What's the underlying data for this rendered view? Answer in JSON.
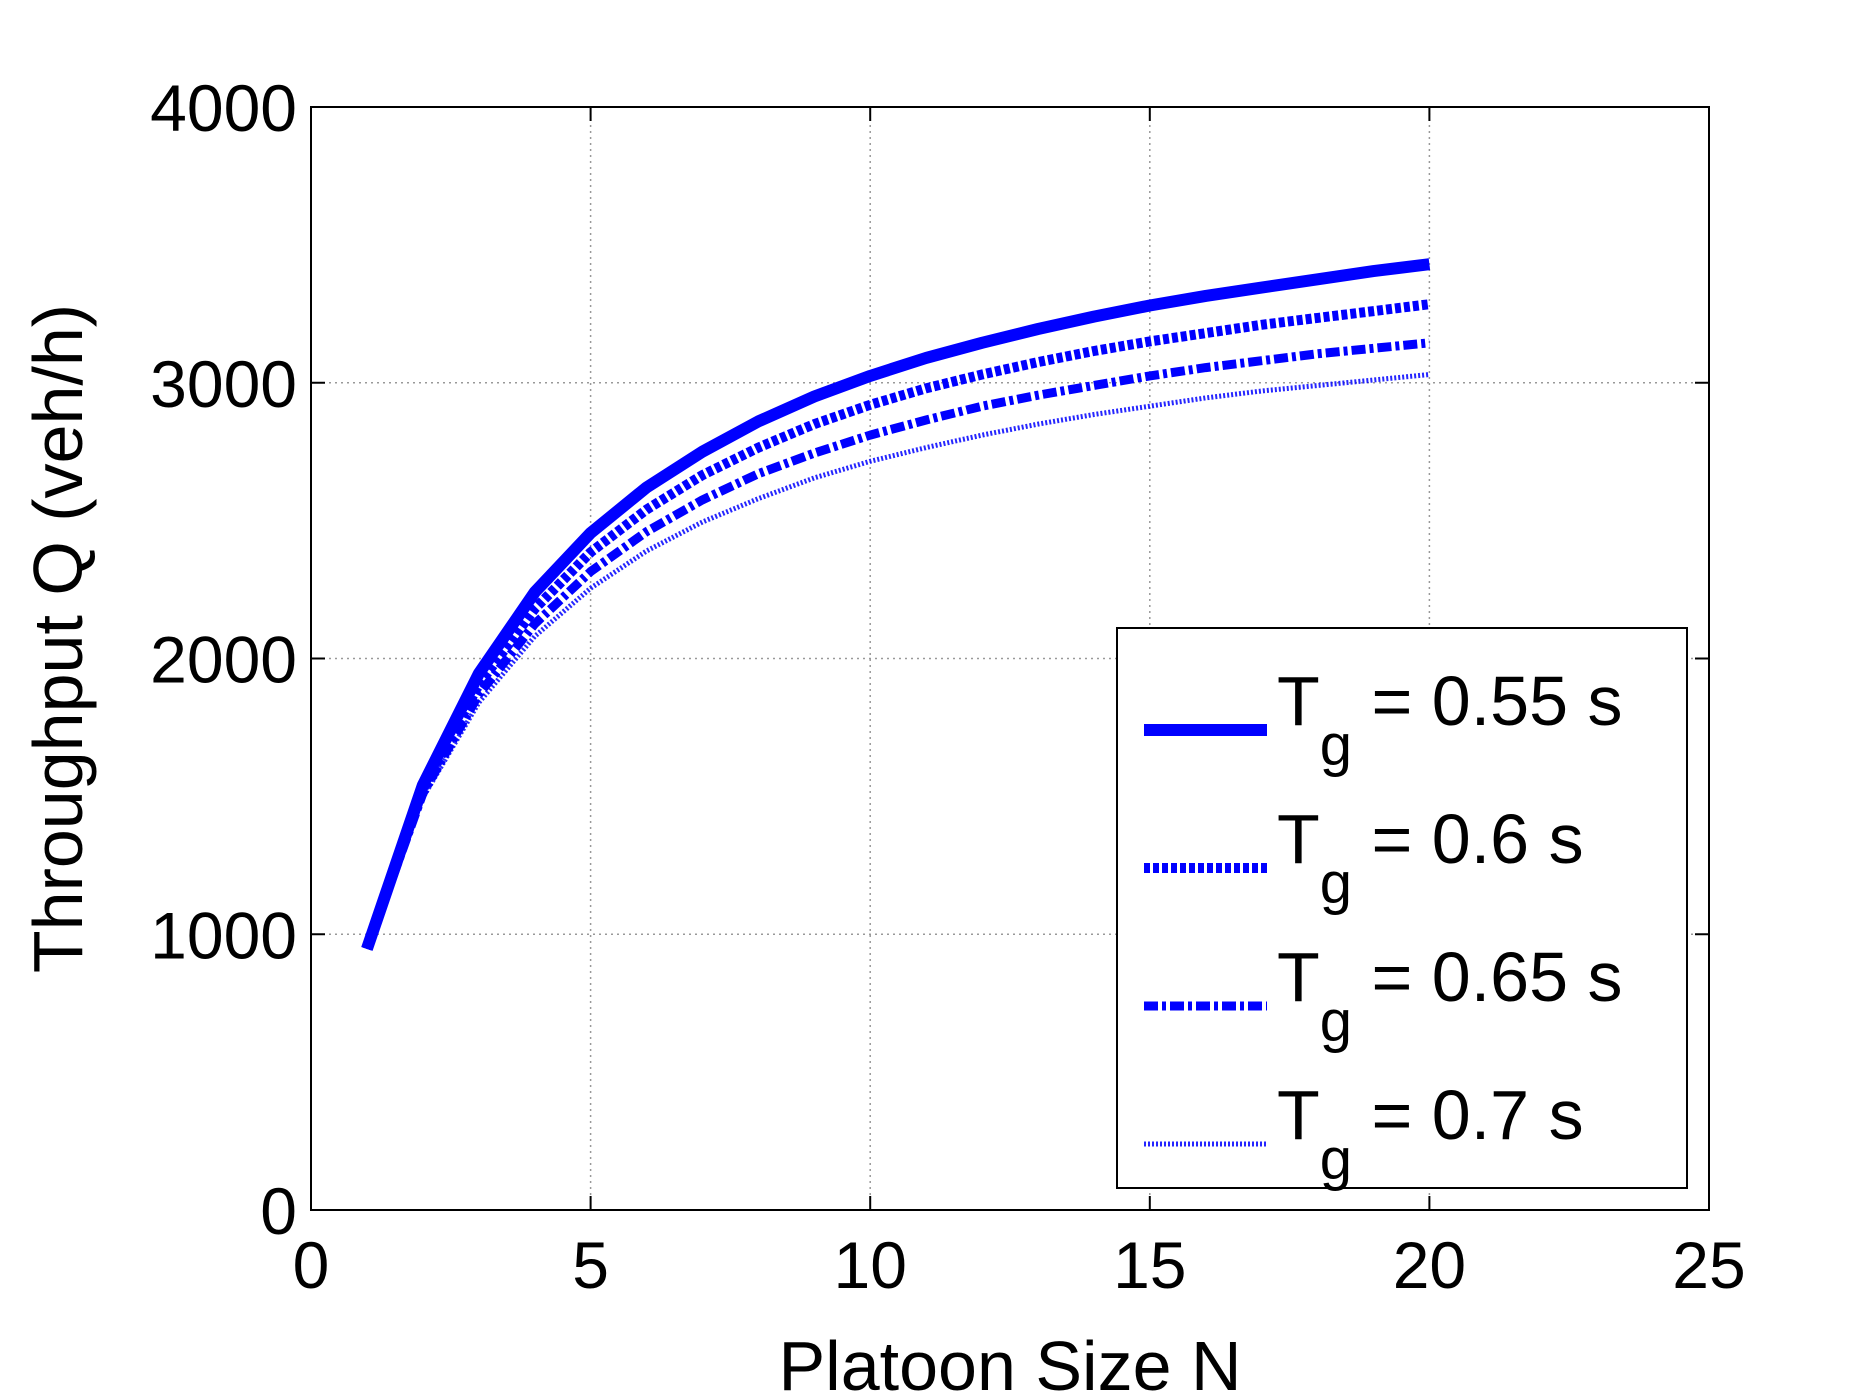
{
  "chart_data": {
    "type": "line",
    "title": "",
    "xlabel": "Platoon Size N",
    "ylabel": "Throughput Q (veh/h)",
    "xlim": [
      0,
      25
    ],
    "ylim": [
      0,
      4000
    ],
    "xticks": [
      "0",
      "5",
      "10",
      "15",
      "20",
      "25"
    ],
    "yticks": [
      "0",
      "1000",
      "2000",
      "3000",
      "4000"
    ],
    "grid": true,
    "legend_position": "bottom-right",
    "line_color": "#0000ff",
    "x": [
      1,
      2,
      3,
      4,
      5,
      6,
      7,
      8,
      9,
      10,
      11,
      12,
      13,
      14,
      15,
      16,
      17,
      18,
      19,
      20
    ],
    "series": [
      {
        "name": "Tg = 0.55 s",
        "legend_main": "T",
        "legend_sub": "g",
        "legend_rest": " = 0.55 s",
        "style": "solid",
        "values": [
          947,
          1540,
          1945,
          2240,
          2455,
          2620,
          2750,
          2860,
          2950,
          3025,
          3090,
          3145,
          3195,
          3240,
          3280,
          3315,
          3345,
          3375,
          3405,
          3430
        ]
      },
      {
        "name": "Tg = 0.6 s",
        "legend_main": "T",
        "legend_sub": "g",
        "legend_rest": " = 0.6 s",
        "style": "dotted",
        "values": [
          947,
          1525,
          1905,
          2180,
          2385,
          2540,
          2665,
          2765,
          2850,
          2920,
          2980,
          3030,
          3075,
          3115,
          3150,
          3180,
          3210,
          3235,
          3260,
          3285
        ]
      },
      {
        "name": "Tg = 0.65 s",
        "legend_main": "T",
        "legend_sub": "g",
        "legend_rest": " = 0.65 s",
        "style": "dashdot",
        "values": [
          947,
          1510,
          1870,
          2125,
          2315,
          2460,
          2575,
          2670,
          2745,
          2810,
          2865,
          2915,
          2955,
          2990,
          3025,
          3055,
          3080,
          3105,
          3125,
          3145
        ]
      },
      {
        "name": "Tg = 0.7 s",
        "legend_main": "T",
        "legend_sub": "g",
        "legend_rest": " = 0.7 s",
        "style": "thin-dotted",
        "values": [
          947,
          1495,
          1840,
          2080,
          2255,
          2390,
          2495,
          2580,
          2655,
          2715,
          2765,
          2810,
          2850,
          2885,
          2915,
          2945,
          2970,
          2990,
          3010,
          3030
        ]
      }
    ]
  }
}
